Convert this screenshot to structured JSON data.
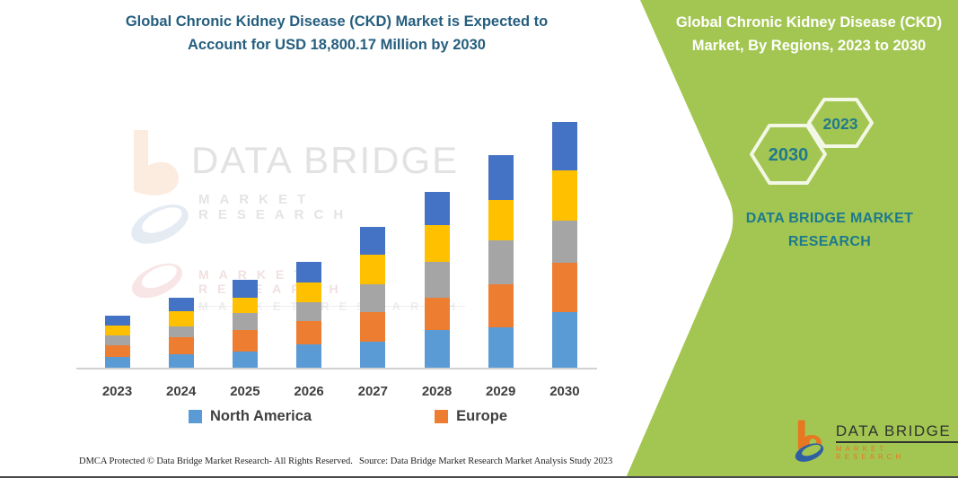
{
  "left_panel": {
    "title_line1": "Global Chronic Kidney Disease (CKD) Market is Expected to",
    "title_line2": "Account for USD 18,800.17 Million by 2030",
    "title_color": "#255E7E",
    "watermark": {
      "brand": "DATA BRIDGE",
      "sub": "MARKET  RESEARCH",
      "faint_row_1": "MARKET  RESEARCH",
      "faint_row_2": "MARKET  RESEARCH"
    },
    "footer_left": "DMCA Protected © Data Bridge Market Research-  All Rights Reserved.",
    "footer_source": "Source: Data Bridge Market Research  Market Analysis Study 2023"
  },
  "right_panel": {
    "panel_color": "#A3C652",
    "teal_color": "#1D7A8C",
    "title_line1": "Global Chronic Kidney Disease (CKD)",
    "title_line2": "Market, By Regions, 2023 to 2030",
    "hexagons": [
      {
        "label": "2030"
      },
      {
        "label": "2023"
      }
    ],
    "brand_line1": "DATA BRIDGE MARKET",
    "brand_line2": "RESEARCH",
    "logo": {
      "name": "DATA BRIDGE",
      "sub": "MARKET  RESEARCH"
    }
  },
  "chart_data": {
    "type": "bar",
    "stacked": true,
    "title": "Global Chronic Kidney Disease (CKD) Market, By Regions, 2023 to 2030",
    "units": "USD Million",
    "categories": [
      "2023",
      "2024",
      "2025",
      "2026",
      "2027",
      "2028",
      "2029",
      "2030"
    ],
    "series": [
      {
        "name": "North America",
        "color": "#5B9BD5",
        "in_legend": true,
        "values": [
          843,
          1028,
          1213,
          1768,
          2022,
          2906,
          3084,
          4229
        ]
      },
      {
        "name": "Europe",
        "color": "#ED7D31",
        "in_legend": true,
        "values": [
          870,
          1330,
          1645,
          1830,
          2214,
          2467,
          3317,
          3818
        ]
      },
      {
        "name": "",
        "color": "#A5A5A5",
        "in_legend": false,
        "values": [
          733,
          795,
          1323,
          1419,
          2125,
          2742,
          3311,
          3201
        ]
      },
      {
        "name": "",
        "color": "#FFC000",
        "in_legend": false,
        "values": [
          775,
          1193,
          1193,
          1487,
          2283,
          2783,
          3132,
          3838
        ]
      },
      {
        "name": "",
        "color": "#4472C4",
        "in_legend": false,
        "values": [
          775,
          1028,
          1371,
          1556,
          2104,
          2515,
          3379,
          3714
        ]
      }
    ],
    "totals": [
      3996,
      5374,
      6745,
      8060,
      10748,
      13413,
      16223,
      18800
    ],
    "legend": [
      "North America",
      "Europe"
    ],
    "legend_position": "bottom",
    "xlabel": "",
    "ylabel": "",
    "y_axis_visible": false,
    "gridlines": false
  }
}
